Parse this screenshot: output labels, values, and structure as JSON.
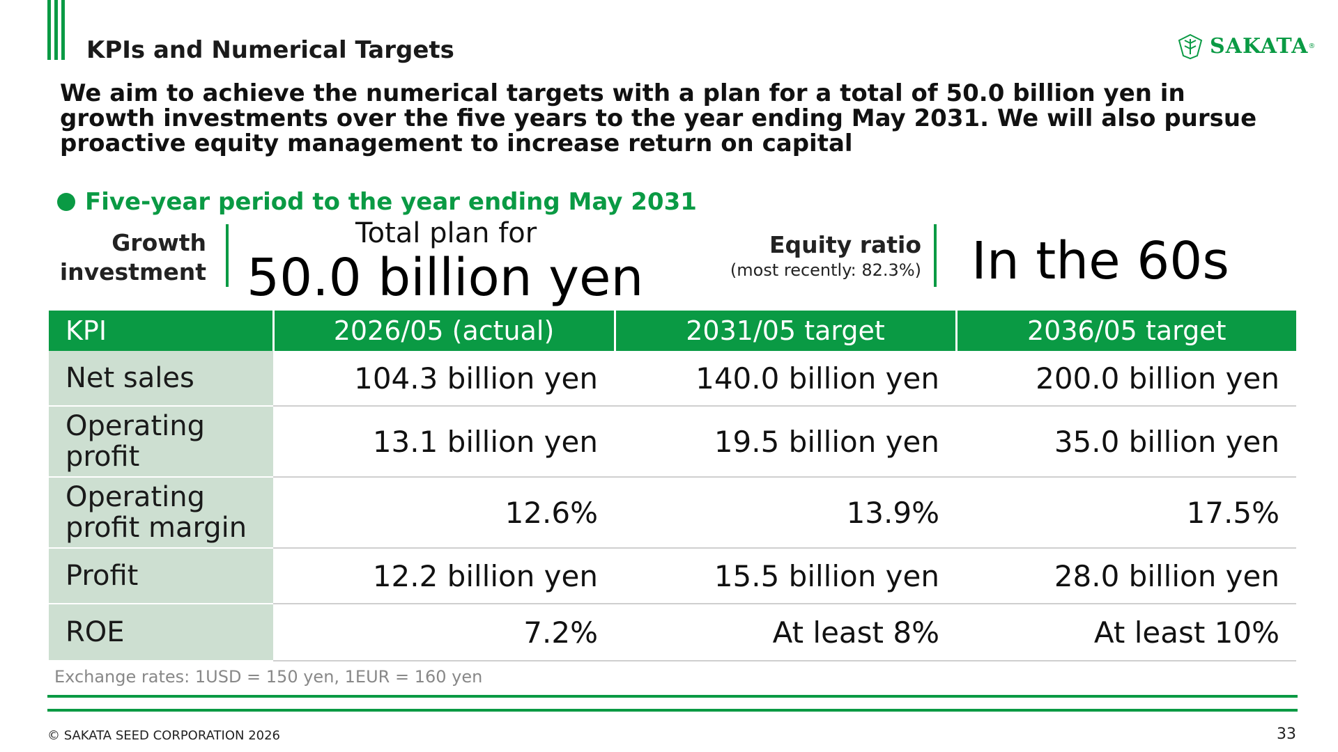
{
  "header": {
    "title": "KPIs and Numerical Targets",
    "logo_text": "SAKATA",
    "logo_reg": "®"
  },
  "headline": "We aim to achieve the numerical targets with a plan for a total of 50.0 billion yen in growth investments over the five years to the year ending May 2031. We will also pursue proactive equity management to increase return on capital",
  "period": "Five-year period to the year ending May 2031",
  "highlights": {
    "growth_investment_label_1": "Growth",
    "growth_investment_label_2": "investment",
    "total_plan_label": "Total plan for",
    "total_plan_value": "50.0 billion yen",
    "equity_ratio_label": "Equity ratio",
    "equity_ratio_sub": "(most recently: 82.3%)",
    "equity_ratio_value": "In the 60s"
  },
  "table": {
    "headers": [
      "KPI",
      "2026/05 (actual)",
      "2031/05 target",
      "2036/05 target"
    ],
    "rows": [
      {
        "label_1": "Net sales",
        "label_2": "",
        "values": [
          "104.3 billion yen",
          "140.0 billion yen",
          "200.0 billion yen"
        ]
      },
      {
        "label_1": "Operating",
        "label_2": "profit",
        "values": [
          "13.1 billion yen",
          "19.5 billion yen",
          "35.0 billion yen"
        ]
      },
      {
        "label_1": "Operating",
        "label_2": "profit margin",
        "values": [
          "12.6%",
          "13.9%",
          "17.5%"
        ]
      },
      {
        "label_1": "Profit",
        "label_2": "",
        "values": [
          "12.2 billion yen",
          "15.5 billion yen",
          "28.0 billion yen"
        ]
      },
      {
        "label_1": "ROE",
        "label_2": "",
        "values": [
          "7.2%",
          "At least 8%",
          "At least 10%"
        ]
      }
    ]
  },
  "note": "Exchange rates: 1USD = 150 yen, 1EUR = 160 yen",
  "footer": {
    "copyright": "© SAKATA SEED CORPORATION 2026",
    "page_number": "33"
  },
  "colors": {
    "brand_green": "#0a9a44",
    "row_header_bg": "#cddfd1"
  }
}
